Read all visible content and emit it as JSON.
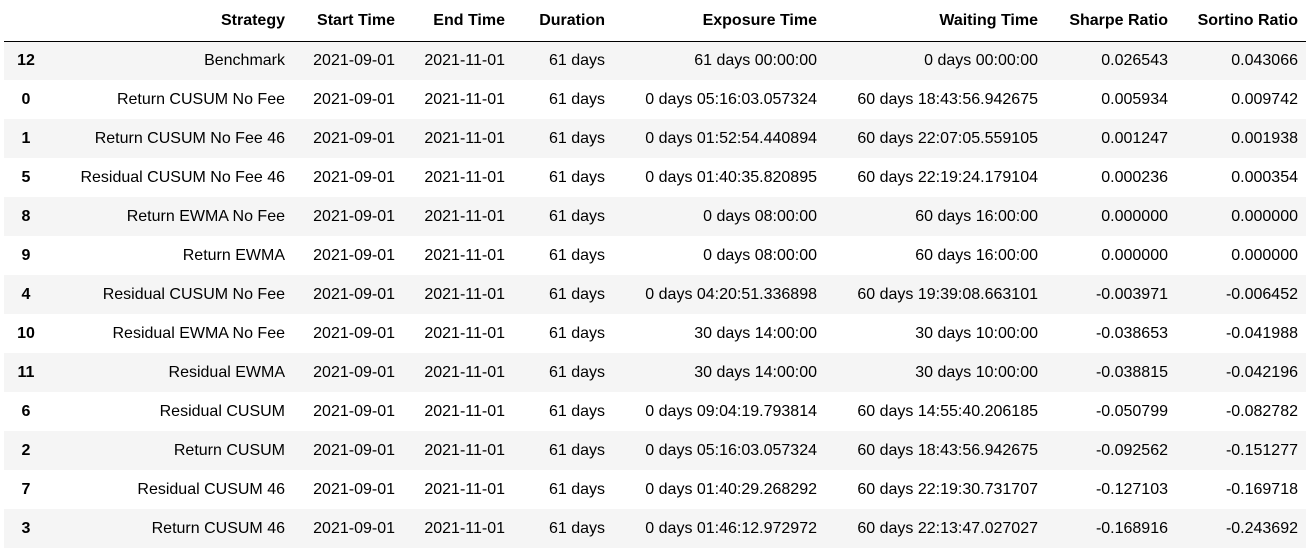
{
  "table": {
    "headers": [
      "",
      "Strategy",
      "Start Time",
      "End Time",
      "Duration",
      "Exposure Time",
      "Waiting Time",
      "Sharpe Ratio",
      "Sortino Ratio"
    ],
    "rows": [
      {
        "index": "12",
        "strategy": "Benchmark",
        "start": "2021-09-01",
        "end": "2021-11-01",
        "duration": "61 days",
        "exposure": "61 days 00:00:00",
        "waiting": "0 days 00:00:00",
        "sharpe": "0.026543",
        "sortino": "0.043066"
      },
      {
        "index": "0",
        "strategy": "Return CUSUM No Fee",
        "start": "2021-09-01",
        "end": "2021-11-01",
        "duration": "61 days",
        "exposure": "0 days 05:16:03.057324",
        "waiting": "60 days 18:43:56.942675",
        "sharpe": "0.005934",
        "sortino": "0.009742"
      },
      {
        "index": "1",
        "strategy": "Return CUSUM No Fee 46",
        "start": "2021-09-01",
        "end": "2021-11-01",
        "duration": "61 days",
        "exposure": "0 days 01:52:54.440894",
        "waiting": "60 days 22:07:05.559105",
        "sharpe": "0.001247",
        "sortino": "0.001938"
      },
      {
        "index": "5",
        "strategy": "Residual CUSUM No Fee 46",
        "start": "2021-09-01",
        "end": "2021-11-01",
        "duration": "61 days",
        "exposure": "0 days 01:40:35.820895",
        "waiting": "60 days 22:19:24.179104",
        "sharpe": "0.000236",
        "sortino": "0.000354"
      },
      {
        "index": "8",
        "strategy": "Return EWMA No Fee",
        "start": "2021-09-01",
        "end": "2021-11-01",
        "duration": "61 days",
        "exposure": "0 days 08:00:00",
        "waiting": "60 days 16:00:00",
        "sharpe": "0.000000",
        "sortino": "0.000000"
      },
      {
        "index": "9",
        "strategy": "Return EWMA",
        "start": "2021-09-01",
        "end": "2021-11-01",
        "duration": "61 days",
        "exposure": "0 days 08:00:00",
        "waiting": "60 days 16:00:00",
        "sharpe": "0.000000",
        "sortino": "0.000000"
      },
      {
        "index": "4",
        "strategy": "Residual CUSUM No Fee",
        "start": "2021-09-01",
        "end": "2021-11-01",
        "duration": "61 days",
        "exposure": "0 days 04:20:51.336898",
        "waiting": "60 days 19:39:08.663101",
        "sharpe": "-0.003971",
        "sortino": "-0.006452"
      },
      {
        "index": "10",
        "strategy": "Residual EWMA No Fee",
        "start": "2021-09-01",
        "end": "2021-11-01",
        "duration": "61 days",
        "exposure": "30 days 14:00:00",
        "waiting": "30 days 10:00:00",
        "sharpe": "-0.038653",
        "sortino": "-0.041988"
      },
      {
        "index": "11",
        "strategy": "Residual EWMA",
        "start": "2021-09-01",
        "end": "2021-11-01",
        "duration": "61 days",
        "exposure": "30 days 14:00:00",
        "waiting": "30 days 10:00:00",
        "sharpe": "-0.038815",
        "sortino": "-0.042196"
      },
      {
        "index": "6",
        "strategy": "Residual CUSUM",
        "start": "2021-09-01",
        "end": "2021-11-01",
        "duration": "61 days",
        "exposure": "0 days 09:04:19.793814",
        "waiting": "60 days 14:55:40.206185",
        "sharpe": "-0.050799",
        "sortino": "-0.082782"
      },
      {
        "index": "2",
        "strategy": "Return CUSUM",
        "start": "2021-09-01",
        "end": "2021-11-01",
        "duration": "61 days",
        "exposure": "0 days 05:16:03.057324",
        "waiting": "60 days 18:43:56.942675",
        "sharpe": "-0.092562",
        "sortino": "-0.151277"
      },
      {
        "index": "7",
        "strategy": "Residual CUSUM 46",
        "start": "2021-09-01",
        "end": "2021-11-01",
        "duration": "61 days",
        "exposure": "0 days 01:40:29.268292",
        "waiting": "60 days 22:19:30.731707",
        "sharpe": "-0.127103",
        "sortino": "-0.169718"
      },
      {
        "index": "3",
        "strategy": "Return CUSUM 46",
        "start": "2021-09-01",
        "end": "2021-11-01",
        "duration": "61 days",
        "exposure": "0 days 01:46:12.972972",
        "waiting": "60 days 22:13:47.027027",
        "sharpe": "-0.168916",
        "sortino": "-0.243692"
      }
    ]
  }
}
